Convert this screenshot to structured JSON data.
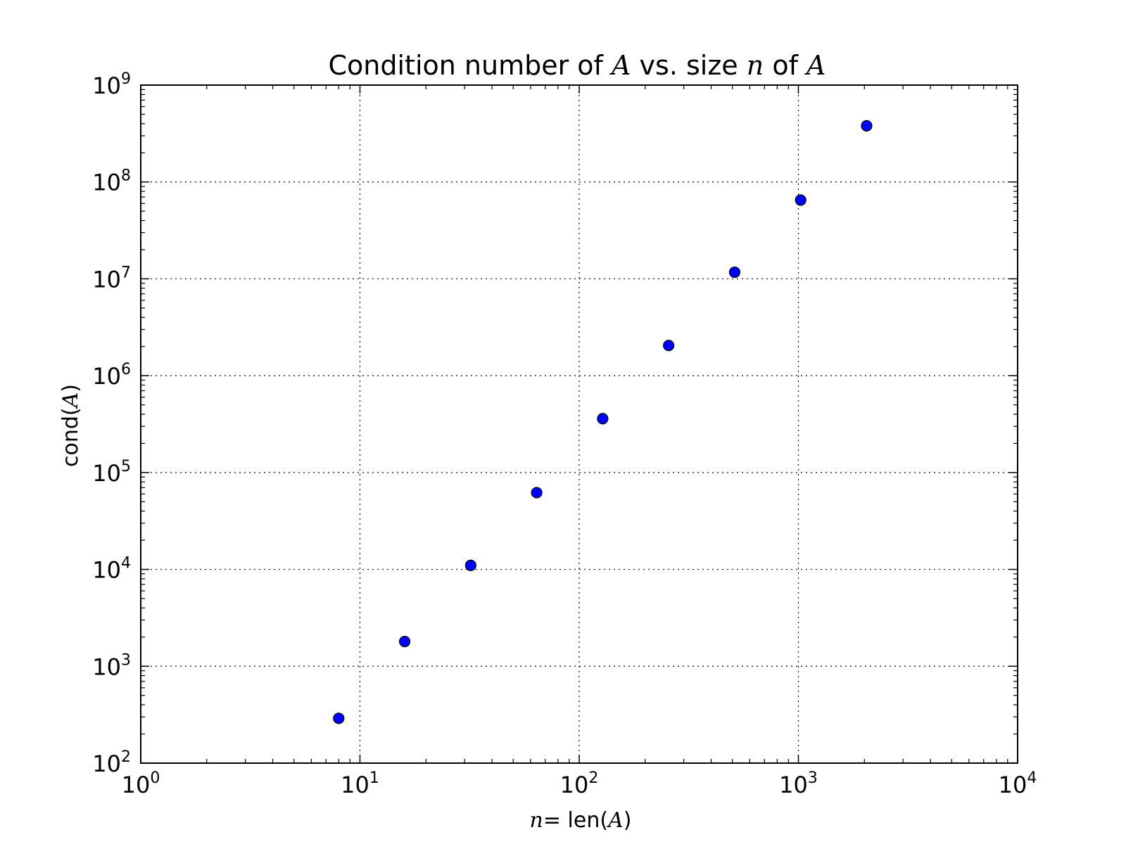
{
  "chart_data": {
    "type": "scatter",
    "title": {
      "pre": "Condition number of ",
      "var1": "A",
      "mid": " vs. size ",
      "var2": "n",
      "post": " of ",
      "var3": "A"
    },
    "xlabel": {
      "var": "n",
      "eq": "= ",
      "pre": "len(",
      "arg": "A",
      "post": ")"
    },
    "ylabel": {
      "pre": "cond(",
      "arg": "A",
      "post": ")"
    },
    "x_scale": "log",
    "y_scale": "log",
    "xlim": [
      1,
      10000
    ],
    "ylim": [
      100,
      1000000000
    ],
    "x_ticks": [
      {
        "value": 1,
        "base": "10",
        "exp": "0"
      },
      {
        "value": 10,
        "base": "10",
        "exp": "1"
      },
      {
        "value": 100,
        "base": "10",
        "exp": "2"
      },
      {
        "value": 1000,
        "base": "10",
        "exp": "3"
      },
      {
        "value": 10000,
        "base": "10",
        "exp": "4"
      }
    ],
    "y_ticks": [
      {
        "value": 100,
        "base": "10",
        "exp": "2"
      },
      {
        "value": 1000,
        "base": "10",
        "exp": "3"
      },
      {
        "value": 10000,
        "base": "10",
        "exp": "4"
      },
      {
        "value": 100000,
        "base": "10",
        "exp": "5"
      },
      {
        "value": 1000000,
        "base": "10",
        "exp": "6"
      },
      {
        "value": 10000000,
        "base": "10",
        "exp": "7"
      },
      {
        "value": 100000000,
        "base": "10",
        "exp": "8"
      },
      {
        "value": 1000000000,
        "base": "10",
        "exp": "9"
      }
    ],
    "grid": true,
    "grid_style": "dotted",
    "marker_color": "#0000ff",
    "marker_edge_color": "#000000",
    "series": [
      {
        "x": [
          8,
          16,
          32,
          64,
          128,
          256,
          512,
          1024,
          2048
        ],
        "y": [
          290,
          1800,
          11000,
          62000,
          360000,
          2050000,
          11700000,
          65000000,
          380000000
        ]
      }
    ]
  }
}
